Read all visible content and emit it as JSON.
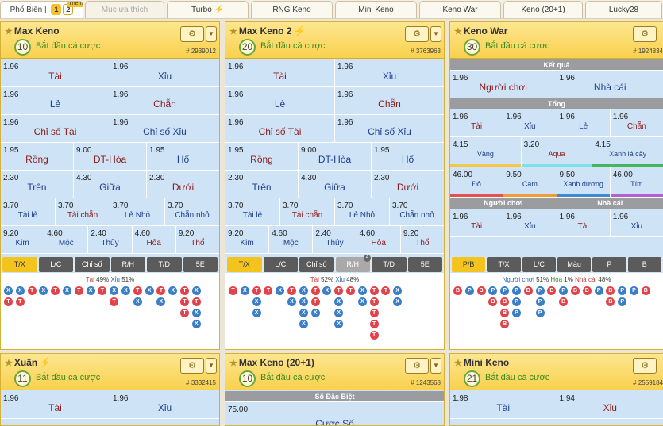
{
  "topbar": {
    "first_tab": "Phổ Biến",
    "page1": "1",
    "page2": "2",
    "page2_badge": "Thêm",
    "tabs": [
      "Mục ưa thích",
      "Turbo",
      "RNG Keno",
      "Mini Keno",
      "Keno War",
      "Keno (20+1)",
      "Lucky28"
    ]
  },
  "panels": [
    {
      "title": "Max Keno",
      "timer": "10",
      "status": "Bắt đầu cá cược",
      "round": "# 2939012"
    },
    {
      "title": "Max Keno 2",
      "timer": "20",
      "status": "Bắt đầu cá cược",
      "round": "# 3763963"
    },
    {
      "title": "Keno War",
      "timer": "30",
      "status": "Bắt đầu cá cược",
      "round": "# 1924834"
    },
    {
      "title": "Xuân",
      "timer": "11",
      "status": "Bắt đầu cá cược",
      "round": "# 3332415"
    },
    {
      "title": "Max Keno (20+1)",
      "timer": "10",
      "status": "Bắt đầu cá cược",
      "round": "# 1243568"
    },
    {
      "title": "Mini Keno",
      "timer": "21",
      "status": "Bắt đầu cá cược",
      "round": "# 2559184"
    }
  ],
  "keno_rows": {
    "r1": {
      "o1": "1.96",
      "n1": "Tài",
      "o2": "1.96",
      "n2": "Xỉu"
    },
    "r2": {
      "o1": "1.96",
      "n1": "Lẻ",
      "o2": "1.96",
      "n2": "Chẵn"
    },
    "r3": {
      "o1": "1.96",
      "n1": "Chỉ số Tài",
      "o2": "1.96",
      "n2": "Chỉ số Xỉu"
    },
    "r4": {
      "o1": "1.95",
      "n1": "Rồng",
      "o2": "9.00",
      "n2": "DT-Hòa",
      "o3": "1.95",
      "n3": "Hổ"
    },
    "r5": {
      "o1": "2.30",
      "n1": "Trên",
      "o2": "4.30",
      "n2": "Giữa",
      "o3": "2.30",
      "n3": "Dưới"
    },
    "r6": {
      "o1": "3.70",
      "n1": "Tài lẻ",
      "o2": "3.70",
      "n2": "Tài chẵn",
      "o3": "3.70",
      "n3": "Lẻ Nhỏ",
      "o4": "3.70",
      "n4": "Chẵn nhỏ"
    },
    "r7": {
      "o1": "9.20",
      "n1": "Kim",
      "o2": "4.60",
      "n2": "Mộc",
      "o3": "2.40",
      "n3": "Thủy",
      "o4": "4.60",
      "n4": "Hỏa",
      "o5": "9.20",
      "n5": "Thổ"
    }
  },
  "trend_tabs_keno": [
    "T/X",
    "L/C",
    "Chỉ số",
    "R/H",
    "T/D",
    "5E"
  ],
  "trend_tabs_keno2_badge": "4",
  "trend_stats": {
    "p1": {
      "a": "Tài",
      "av": "49%",
      "b": "Xỉu",
      "bv": "51%"
    },
    "p2": {
      "a": "Tài",
      "av": "52%",
      "b": "Xỉu",
      "bv": "48%"
    },
    "p3": {
      "a": "Người chơi",
      "av": "51%",
      "m": "Hòa",
      "mv": "1%",
      "b": "Nhà cái",
      "bv": "48%"
    }
  },
  "keno_war": {
    "result_header": "Kết quả",
    "r1": {
      "o1": "1.96",
      "n1": "Người chơi",
      "o2": "1.96",
      "n2": "Nhà cái"
    },
    "total_header": "Tổng",
    "r2": {
      "o1": "1.96",
      "n1": "Tài",
      "o2": "1.96",
      "n2": "Xỉu",
      "o3": "1.96",
      "n3": "Lẻ",
      "o4": "1.96",
      "n4": "Chẵn"
    },
    "r3": {
      "o1": "4.15",
      "n1": "Vàng",
      "o2": "3.20",
      "n2": "Aqua",
      "o3": "4.15",
      "n3": "Xanh lá cây"
    },
    "r4": {
      "o1": "46.00",
      "n1": "Đỏ",
      "o2": "9.50",
      "n2": "Cam",
      "o3": "9.50",
      "n3": "Xanh dương",
      "o4": "46.00",
      "n4": "Tím"
    },
    "sub_left": "Người chơi",
    "sub_right": "Nhà cái",
    "r5": {
      "o1": "1.96",
      "n1": "Tài",
      "o2": "1.96",
      "n2": "Xỉu",
      "o3": "1.96",
      "n3": "Tài",
      "o4": "1.96",
      "n4": "Xỉu"
    },
    "tabs": [
      "P/B",
      "T/X",
      "L/C",
      "Màu",
      "P",
      "B"
    ]
  },
  "bottom": {
    "xuan_r1": {
      "o1": "1.96",
      "n1": "Tài",
      "o2": "1.96",
      "n2": "Xỉu"
    },
    "special_header": "Số Đặc Biệt",
    "special_odd": "75.00",
    "special_name": "Cược Số",
    "mini_r1": {
      "o1": "1.98",
      "n1": "Tài",
      "o2": "1.94",
      "n2": "Xỉu"
    }
  },
  "colors": {
    "accent": "#f6c22c",
    "cell": "#cfe3f6",
    "red": "#e2434b",
    "blue": "#3a7dc9"
  }
}
